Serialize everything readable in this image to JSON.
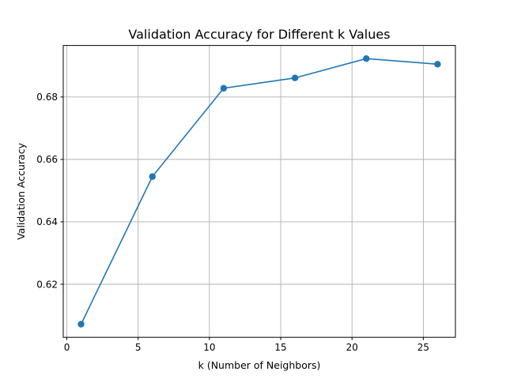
{
  "chart_data": {
    "type": "line",
    "title": "Validation Accuracy for Different k Values",
    "xlabel": "k (Number of Neighbors)",
    "ylabel": "Validation Accuracy",
    "xlim": [
      -0.25,
      27.25
    ],
    "ylim": [
      0.603,
      0.6965
    ],
    "xticks": [
      0,
      5,
      10,
      15,
      20,
      25
    ],
    "yticks": [
      0.62,
      0.64,
      0.66,
      0.68
    ],
    "xtick_labels": [
      "0",
      "5",
      "10",
      "15",
      "20",
      "25"
    ],
    "ytick_labels": [
      "0.62",
      "0.64",
      "0.66",
      "0.68"
    ],
    "grid": true,
    "series": [
      {
        "color": "#1f77b4",
        "marker": "circle",
        "x": [
          1,
          6,
          11,
          16,
          21,
          26
        ],
        "y": [
          0.6072,
          0.6545,
          0.6828,
          0.6861,
          0.6923,
          0.6905
        ]
      }
    ]
  }
}
